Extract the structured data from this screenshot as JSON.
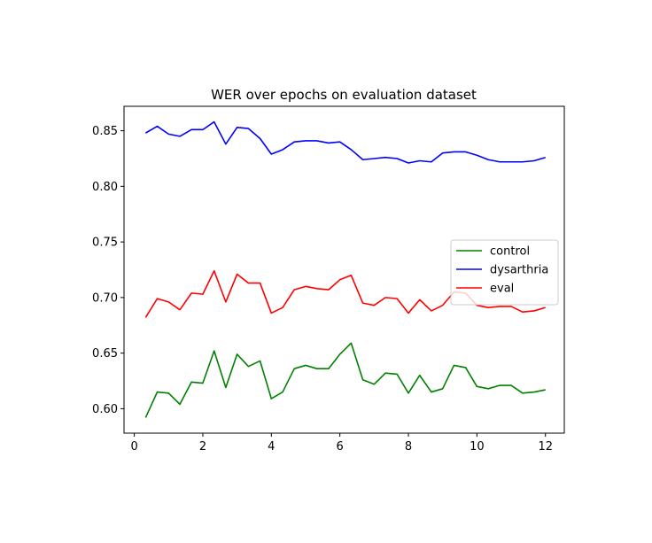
{
  "chart_data": {
    "type": "line",
    "title": "WER over epochs on evaluation dataset",
    "xlabel": "",
    "ylabel": "",
    "xlim": [
      -0.3,
      12.55
    ],
    "ylim": [
      0.578,
      0.872
    ],
    "xticks": [
      0,
      2,
      4,
      6,
      8,
      10,
      12
    ],
    "yticks": [
      0.6,
      0.65,
      0.7,
      0.75,
      0.8,
      0.85
    ],
    "grid": false,
    "legend_position": "center-right",
    "x": [
      0.33,
      0.67,
      1.0,
      1.33,
      1.67,
      2.0,
      2.33,
      2.67,
      3.0,
      3.33,
      3.67,
      4.0,
      4.33,
      4.67,
      5.0,
      5.33,
      5.67,
      6.0,
      6.33,
      6.67,
      7.0,
      7.33,
      7.67,
      8.0,
      8.33,
      8.67,
      9.0,
      9.33,
      9.67,
      10.0,
      10.33,
      10.67,
      11.0,
      11.33,
      11.67,
      12.0
    ],
    "series": [
      {
        "name": "control",
        "color": "#008000",
        "values": [
          0.592,
          0.615,
          0.614,
          0.604,
          0.624,
          0.623,
          0.652,
          0.619,
          0.649,
          0.638,
          0.643,
          0.609,
          0.615,
          0.636,
          0.639,
          0.636,
          0.636,
          0.649,
          0.659,
          0.626,
          0.622,
          0.632,
          0.631,
          0.614,
          0.63,
          0.615,
          0.618,
          0.639,
          0.637,
          0.62,
          0.618,
          0.621,
          0.621,
          0.614,
          0.615,
          0.617
        ]
      },
      {
        "name": "dysarthria",
        "color": "#0000ff",
        "values": [
          0.848,
          0.854,
          0.847,
          0.845,
          0.851,
          0.851,
          0.858,
          0.838,
          0.853,
          0.852,
          0.843,
          0.829,
          0.833,
          0.84,
          0.841,
          0.841,
          0.839,
          0.84,
          0.833,
          0.824,
          0.825,
          0.826,
          0.825,
          0.821,
          0.823,
          0.822,
          0.83,
          0.831,
          0.831,
          0.828,
          0.824,
          0.822,
          0.822,
          0.822,
          0.823,
          0.826
        ]
      },
      {
        "name": "eval",
        "color": "#ff0000",
        "values": [
          0.682,
          0.699,
          0.696,
          0.689,
          0.704,
          0.703,
          0.724,
          0.696,
          0.721,
          0.713,
          0.713,
          0.686,
          0.691,
          0.707,
          0.71,
          0.708,
          0.707,
          0.716,
          0.72,
          0.695,
          0.693,
          0.7,
          0.699,
          0.686,
          0.698,
          0.688,
          0.693,
          0.705,
          0.704,
          0.693,
          0.691,
          0.692,
          0.692,
          0.687,
          0.688,
          0.691
        ]
      }
    ]
  }
}
